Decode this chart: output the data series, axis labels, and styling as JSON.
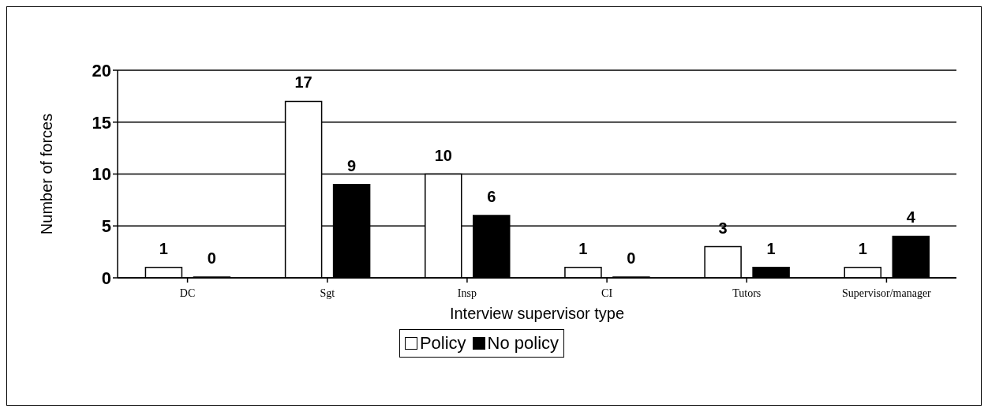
{
  "chart_data": {
    "type": "bar",
    "categories": [
      "DC",
      "Sgt",
      "Insp",
      "CI",
      "Tutors",
      "Supervisor/manager"
    ],
    "series": [
      {
        "name": "Policy",
        "color": "#ffffff",
        "values": [
          1,
          17,
          10,
          1,
          3,
          1
        ]
      },
      {
        "name": "No policy",
        "color": "#000000",
        "values": [
          0,
          9,
          6,
          0,
          1,
          4
        ]
      }
    ],
    "xlabel": "Interview supervisor type",
    "ylabel": "Number of forces",
    "ylim": [
      0,
      20
    ],
    "yticks": [
      0,
      5,
      10,
      15,
      20
    ],
    "grid": "y",
    "legend": "bottom",
    "data_labels": true
  }
}
